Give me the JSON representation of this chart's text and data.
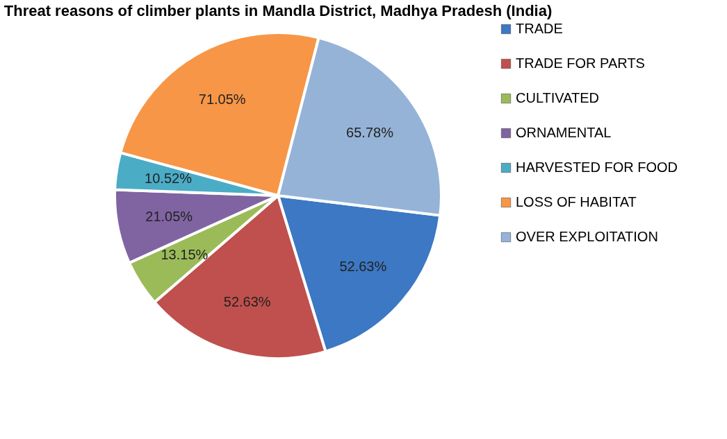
{
  "chart_data": {
    "type": "pie",
    "title": "Threat reasons of climber plants in Mandla District, Madhya Pradesh (India)",
    "categories": [
      "TRADE",
      "TRADE FOR PARTS",
      "CULTIVATED",
      "ORNAMENTAL",
      "HARVESTED FOR FOOD",
      "LOSS OF HABITAT",
      "OVER EXPLOITATION"
    ],
    "values": [
      52.63,
      52.63,
      13.15,
      21.05,
      10.52,
      71.05,
      65.78
    ],
    "value_labels": [
      "52.63%",
      "52.63%",
      "13.15%",
      "21.05%",
      "10.52%",
      "71.05%",
      "65.78%"
    ],
    "colors": [
      "#3c78c3",
      "#c0504d",
      "#9bbb59",
      "#8064a2",
      "#4bacc6",
      "#f79646",
      "#95b3d7"
    ],
    "legend": "right"
  }
}
